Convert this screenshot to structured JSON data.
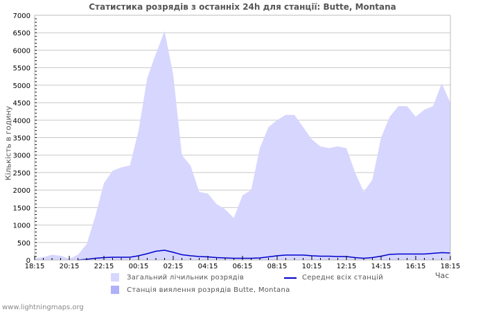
{
  "title": "Статистика розрядів з останніх 24h для станції: Butte, Montana",
  "footer": "www.lightningmaps.org",
  "colors": {
    "total_fill": "#d6d6ff",
    "station_fill": "#b0b0f8",
    "average_line": "#0000cc",
    "grid": "#c8c8c8",
    "axis": "#bbbbbb"
  },
  "legend": {
    "total": "Загальний лічильник розрядів",
    "station": "Станція виялення розрядів Butte, Montana",
    "average": "Середнє всіх станцій"
  },
  "chart_data": {
    "type": "area",
    "title": "Статистика розрядів з останніх 24h для станції: Butte, Montana",
    "xlabel": "Час",
    "ylabel": "Кількість в годину",
    "ylim": [
      0,
      7000
    ],
    "yticks": [
      0,
      500,
      1000,
      1500,
      2000,
      2500,
      3000,
      3500,
      4000,
      4500,
      5000,
      5500,
      6000,
      6500,
      7000
    ],
    "xtick_labels": [
      "18:15",
      "20:15",
      "22:15",
      "00:15",
      "02:15",
      "04:15",
      "06:15",
      "08:15",
      "10:15",
      "12:15",
      "14:15",
      "16:15",
      "18:15"
    ],
    "grid": true,
    "legend_position": "bottom",
    "x": [
      "18:15",
      "18:45",
      "19:15",
      "19:45",
      "20:15",
      "20:45",
      "21:15",
      "21:45",
      "22:15",
      "22:45",
      "23:15",
      "23:45",
      "00:15",
      "00:45",
      "01:15",
      "01:45",
      "02:15",
      "02:45",
      "03:15",
      "03:45",
      "04:15",
      "04:45",
      "05:15",
      "05:45",
      "06:15",
      "06:45",
      "07:15",
      "07:45",
      "08:15",
      "08:45",
      "09:15",
      "09:45",
      "10:15",
      "10:45",
      "11:15",
      "11:45",
      "12:15",
      "12:45",
      "13:15",
      "13:45",
      "14:15",
      "14:45",
      "15:15",
      "15:45",
      "16:15",
      "16:45",
      "17:15",
      "17:45",
      "18:15"
    ],
    "series": [
      {
        "name": "Загальний лічильник розрядів",
        "values": [
          50,
          80,
          150,
          120,
          40,
          150,
          450,
          1250,
          2200,
          2550,
          2650,
          2700,
          3700,
          5200,
          5900,
          6550,
          5300,
          3000,
          2700,
          1950,
          1900,
          1600,
          1450,
          1200,
          1850,
          2000,
          3200,
          3800,
          4000,
          4150,
          4150,
          3800,
          3450,
          3250,
          3200,
          3250,
          3200,
          2500,
          1950,
          2300,
          3500,
          4100,
          4400,
          4400,
          4100,
          4300,
          4400,
          5050,
          4500
        ]
      },
      {
        "name": "Станція виялення розрядів Butte, Montana",
        "values": [
          0,
          0,
          0,
          0,
          0,
          0,
          0,
          0,
          0,
          0,
          0,
          0,
          0,
          0,
          0,
          0,
          0,
          0,
          0,
          0,
          0,
          0,
          0,
          0,
          0,
          0,
          0,
          0,
          0,
          0,
          0,
          0,
          0,
          0,
          0,
          0,
          0,
          0,
          0,
          0,
          0,
          0,
          0,
          0,
          0,
          0,
          0,
          0,
          0
        ]
      },
      {
        "name": "Середнє всіх станцій",
        "values": [
          null,
          null,
          null,
          null,
          null,
          0,
          20,
          50,
          70,
          80,
          80,
          80,
          120,
          180,
          250,
          280,
          220,
          150,
          120,
          100,
          90,
          70,
          60,
          50,
          50,
          50,
          60,
          90,
          120,
          140,
          140,
          140,
          120,
          110,
          110,
          100,
          100,
          70,
          50,
          70,
          110,
          160,
          170,
          170,
          170,
          170,
          190,
          210,
          200
        ]
      }
    ]
  }
}
